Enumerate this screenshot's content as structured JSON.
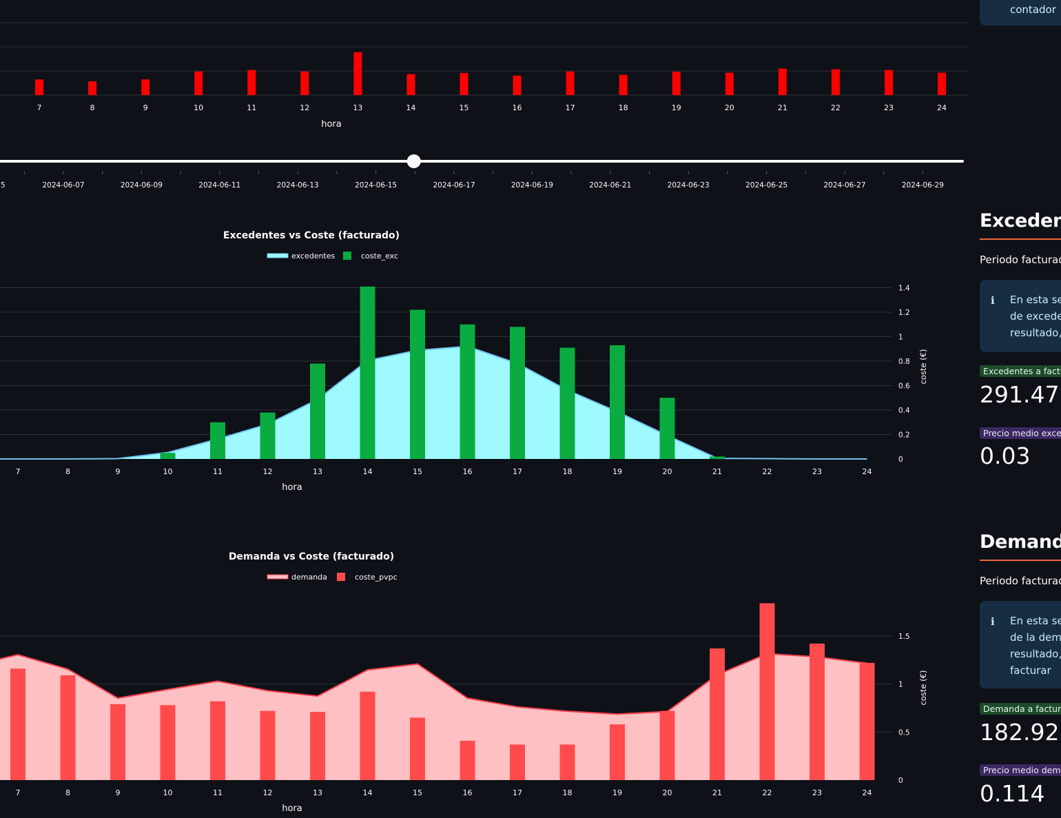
{
  "colors": {
    "background": "#0e1117",
    "grid": "#2e3139",
    "top_bar": "#ff0000",
    "exc_area": "#9ffaff",
    "exc_line": "#6fc3f0",
    "exc_bar": "#0aab41",
    "dem_area": "#ffc0c3",
    "dem_line": "#ff3e4b",
    "dem_bar": "#ff4b4b",
    "accent_rule": "#f0683a"
  },
  "top_chart": {
    "xlabel": "hora",
    "hours": [
      7,
      8,
      9,
      10,
      11,
      12,
      13,
      14,
      15,
      16,
      17,
      18,
      19,
      20,
      21,
      22,
      23,
      24
    ],
    "values": [
      0.65,
      0.57,
      0.65,
      0.98,
      1.04,
      0.98,
      1.78,
      0.87,
      0.92,
      0.81,
      0.98,
      0.84,
      0.97,
      0.93,
      1.1,
      1.07,
      1.04,
      0.93
    ],
    "ylim": [
      0,
      3.0
    ]
  },
  "date_slider": {
    "value_fraction": 0.43,
    "partial_first_label": "5",
    "tick_labels": [
      "2024-06-07",
      "2024-06-09",
      "2024-06-11",
      "2024-06-13",
      "2024-06-15",
      "2024-06-17",
      "2024-06-19",
      "2024-06-21",
      "2024-06-23",
      "2024-06-25",
      "2024-06-27",
      "2024-06-29"
    ]
  },
  "chart_data": [
    {
      "type": "bar",
      "xlabel": "hora",
      "categories": [
        7,
        8,
        9,
        10,
        11,
        12,
        13,
        14,
        15,
        16,
        17,
        18,
        19,
        20,
        21,
        22,
        23,
        24
      ],
      "values": [
        0.65,
        0.57,
        0.65,
        0.98,
        1.04,
        0.98,
        1.78,
        0.87,
        0.92,
        0.81,
        0.98,
        0.84,
        0.97,
        0.93,
        1.1,
        1.07,
        1.04,
        0.93
      ],
      "ylim": [
        0,
        3.0
      ]
    },
    {
      "type": "bar",
      "title": "Excedentes vs Coste (facturado)",
      "xlabel": "hora",
      "y2label": "coste (€)",
      "legend": [
        "excedentes",
        "coste_exc"
      ],
      "x": [
        7,
        8,
        9,
        10,
        11,
        12,
        13,
        14,
        15,
        16,
        17,
        18,
        19,
        20,
        21,
        22,
        23,
        24
      ],
      "series": [
        {
          "name": "excedentes",
          "type": "area",
          "values": [
            0,
            0,
            0.01,
            0.2,
            0.62,
            1.08,
            1.85,
            3.06,
            3.38,
            3.5,
            2.97,
            2.14,
            1.47,
            0.73,
            0.02,
            0.01,
            0,
            0
          ],
          "ylim": [
            0,
            5.4
          ]
        },
        {
          "name": "coste_exc",
          "type": "bar",
          "values": [
            0,
            0,
            0,
            0.05,
            0.3,
            0.38,
            0.78,
            1.41,
            1.22,
            1.1,
            1.08,
            0.91,
            0.93,
            0.5,
            0.02,
            0,
            0,
            0
          ]
        }
      ],
      "y2ticks": [
        "0",
        "0.2",
        "0.4",
        "0.6",
        "0.8",
        "1",
        "1.2",
        "1.4"
      ],
      "y2lim": [
        0,
        1.42
      ]
    },
    {
      "type": "bar",
      "title": "Demanda vs Coste (facturado)",
      "xlabel": "hora",
      "y2label": "coste (€)",
      "legend": [
        "demanda",
        "coste_pvpc"
      ],
      "x": [
        7,
        8,
        9,
        10,
        11,
        12,
        13,
        14,
        15,
        16,
        17,
        18,
        19,
        20,
        21,
        22,
        23,
        24
      ],
      "series": [
        {
          "name": "demanda",
          "type": "area",
          "values": [
            4.88,
            4.32,
            3.19,
            3.53,
            3.85,
            3.48,
            3.27,
            4.29,
            4.52,
            3.19,
            2.85,
            2.68,
            2.57,
            2.67,
            4.1,
            4.92,
            4.8,
            4.55
          ],
          "ylim": [
            0,
            7.3
          ]
        },
        {
          "name": "coste_pvpc",
          "type": "bar",
          "values": [
            1.16,
            1.09,
            0.79,
            0.78,
            0.82,
            0.72,
            0.71,
            0.92,
            0.65,
            0.41,
            0.37,
            0.37,
            0.58,
            0.72,
            1.37,
            1.84,
            1.42,
            1.22
          ]
        }
      ],
      "y2ticks": [
        "0",
        "0.5",
        "1",
        "1.5"
      ],
      "y2lim": [
        0,
        1.95
      ]
    }
  ],
  "sidebar": {
    "top_box_text": "contador",
    "excedentes": {
      "title": "Excedentes",
      "caption": "Periodo facturado",
      "info_icon": "ℹ",
      "info_lines": [
        "En esta sec",
        "de excedent",
        "resultado, s"
      ],
      "metric1_label": "Excedentes a facturar",
      "metric1_value": "291.47",
      "metric2_label": "Precio medio excedentes",
      "metric2_value": "0.03"
    },
    "demanda": {
      "title": "Demanda:",
      "caption": "Periodo facturado",
      "info_icon": "ℹ",
      "info_lines": [
        "En esta sec",
        "de la dema",
        "resultado, s",
        "facturar"
      ],
      "metric1_label": "Demanda a facturar",
      "metric1_value": "182.92",
      "metric2_label": "Precio medio demanda",
      "metric2_value": "0.114"
    }
  }
}
